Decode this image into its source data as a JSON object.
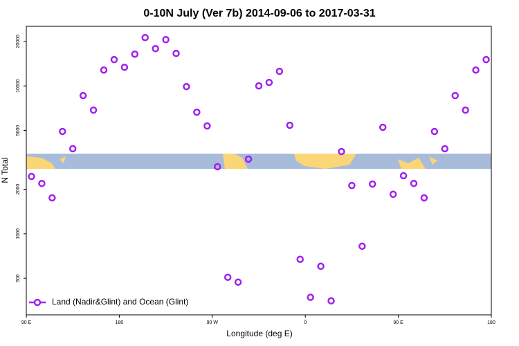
{
  "chart_data": {
    "type": "scatter",
    "title": "0-10N July (Ver 7b)   2014-09-06 to 2017-03-31",
    "x_label": "Longitude (deg E)",
    "y_label": "N Total",
    "y_scale": "log",
    "xlim": [
      90,
      540
    ],
    "xticks": [
      {
        "value": 90,
        "label": "90 E"
      },
      180,
      {
        "value": 270,
        "label": "90 W"
      },
      {
        "value": 360,
        "label": "0"
      },
      {
        "value": 450,
        "label": "90 E"
      },
      {
        "value": 540,
        "label": "180"
      }
    ],
    "ylim": [
      283,
      25300
    ],
    "yticks": [
      500,
      1000,
      2000,
      5000,
      10000,
      20000
    ],
    "legend": "bottom-left",
    "series": [
      {
        "name": "Land (Nadir&Glint) and Ocean (Glint)",
        "color": "#a020f0",
        "x": [
          95,
          105,
          115,
          125,
          135,
          145,
          155,
          165,
          175,
          185,
          195,
          205,
          215,
          225,
          235,
          245,
          255,
          265,
          275,
          285,
          295,
          305,
          315,
          325,
          335,
          345,
          355,
          365,
          375,
          385,
          395,
          405,
          415,
          425,
          435,
          445,
          455,
          465,
          475,
          485,
          495,
          505,
          515,
          525,
          535
        ],
        "values": [
          2440,
          2190,
          1750,
          4920,
          3760,
          8600,
          6860,
          12800,
          15060,
          13370,
          16400,
          21230,
          17870,
          20560,
          16590,
          9890,
          6640,
          5360,
          2840,
          508,
          471,
          3200,
          10000,
          10550,
          12540,
          5420,
          672,
          372,
          603,
          352,
          3600,
          2120,
          824,
          2170,
          5250,
          1850,
          2470,
          2190,
          1750,
          4920,
          3760,
          8600,
          6860,
          12800,
          15060
        ]
      }
    ]
  }
}
